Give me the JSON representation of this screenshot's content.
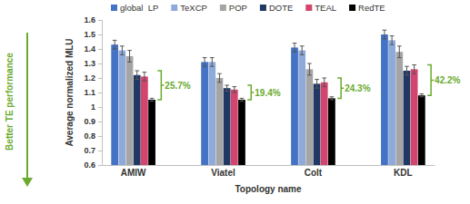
{
  "chart_data": {
    "type": "bar",
    "x_label": "Topology name",
    "y_label": "Average normalized MLU",
    "categories": [
      "AMIW",
      "Viatel",
      "Colt",
      "KDL"
    ],
    "series": [
      {
        "name": "global  LP",
        "color": "#4472c4",
        "values": [
          1.43,
          1.31,
          1.41,
          1.5
        ],
        "errors": [
          0.03,
          0.03,
          0.03,
          0.03
        ]
      },
      {
        "name": "TeXCP",
        "color": "#8eaadb",
        "values": [
          1.39,
          1.31,
          1.39,
          1.46
        ],
        "errors": [
          0.03,
          0.03,
          0.03,
          0.03
        ]
      },
      {
        "name": "POP",
        "color": "#a5a5a5",
        "values": [
          1.35,
          1.2,
          1.26,
          1.38
        ],
        "errors": [
          0.04,
          0.03,
          0.04,
          0.04
        ]
      },
      {
        "name": "DOTE",
        "color": "#203864",
        "values": [
          1.22,
          1.13,
          1.16,
          1.25
        ],
        "errors": [
          0.03,
          0.02,
          0.03,
          0.03
        ]
      },
      {
        "name": "TEAL",
        "color": "#d1456e",
        "values": [
          1.21,
          1.12,
          1.17,
          1.26
        ],
        "errors": [
          0.03,
          0.02,
          0.03,
          0.03
        ]
      },
      {
        "name": "RedTE",
        "color": "#000000",
        "values": [
          1.05,
          1.05,
          1.06,
          1.08
        ],
        "errors": [
          0.01,
          0.01,
          0.01,
          0.01
        ]
      }
    ],
    "ylim": [
      0.6,
      1.6
    ],
    "yticks": [
      0.6,
      0.7,
      0.8,
      0.9,
      1,
      1.1,
      1.2,
      1.3,
      1.4,
      1.5,
      1.6
    ],
    "grid": false,
    "legend": "top",
    "annotations": [
      "25.7%",
      "19.4%",
      "24.3%",
      "42.2%"
    ],
    "side_label": "Better TE performance"
  }
}
